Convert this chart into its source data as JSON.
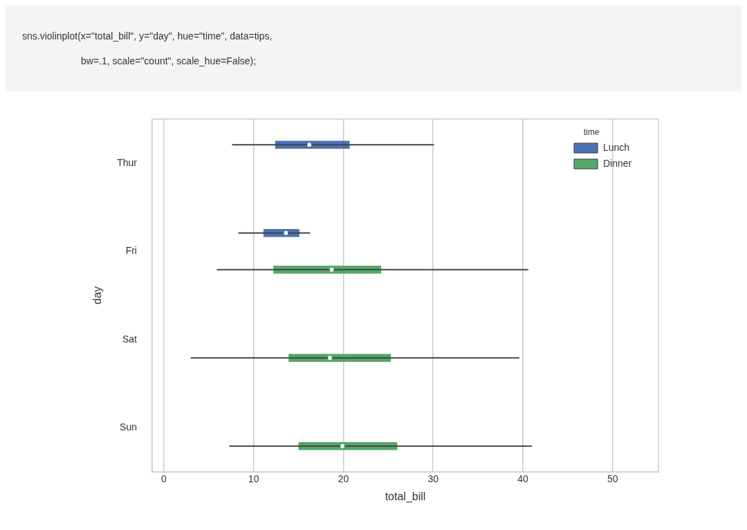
{
  "chart_data": {
    "type": "box",
    "orientation": "horizontal",
    "annotations": [
      "sns.violinplot(x=\"total_bill\", y=\"day\", hue=\"time\", data=tips,",
      "bw=.1, scale=\"count\", scale_hue=False);"
    ],
    "xlabel": "total_bill",
    "ylabel": "day",
    "legend_title": "time",
    "legend": "top right",
    "grid": "x",
    "categories": [
      "Thur",
      "Fri",
      "Sat",
      "Sun"
    ],
    "xlim": [
      -1.3,
      55.1
    ],
    "xticks": [
      0,
      10,
      20,
      30,
      40,
      50
    ],
    "series": [
      {
        "name": "Lunch",
        "color": "#4c72b0",
        "boxes": [
          {
            "low": 7.6,
            "q1": 12.4,
            "median": 16.2,
            "q3": 20.7,
            "high": 30.1
          },
          {
            "low": 8.3,
            "q1": 11.1,
            "median": 13.6,
            "q3": 15.1,
            "high": 16.3
          },
          null,
          null
        ]
      },
      {
        "name": "Dinner",
        "color": "#55a868",
        "boxes": [
          null,
          {
            "low": 5.9,
            "q1": 12.2,
            "median": 18.7,
            "q3": 24.2,
            "high": 40.6
          },
          {
            "low": 3.0,
            "q1": 13.9,
            "median": 18.5,
            "q3": 25.3,
            "high": 39.6
          },
          {
            "low": 7.3,
            "q1": 15.0,
            "median": 19.9,
            "q3": 26.0,
            "high": 41.0
          }
        ]
      }
    ]
  }
}
